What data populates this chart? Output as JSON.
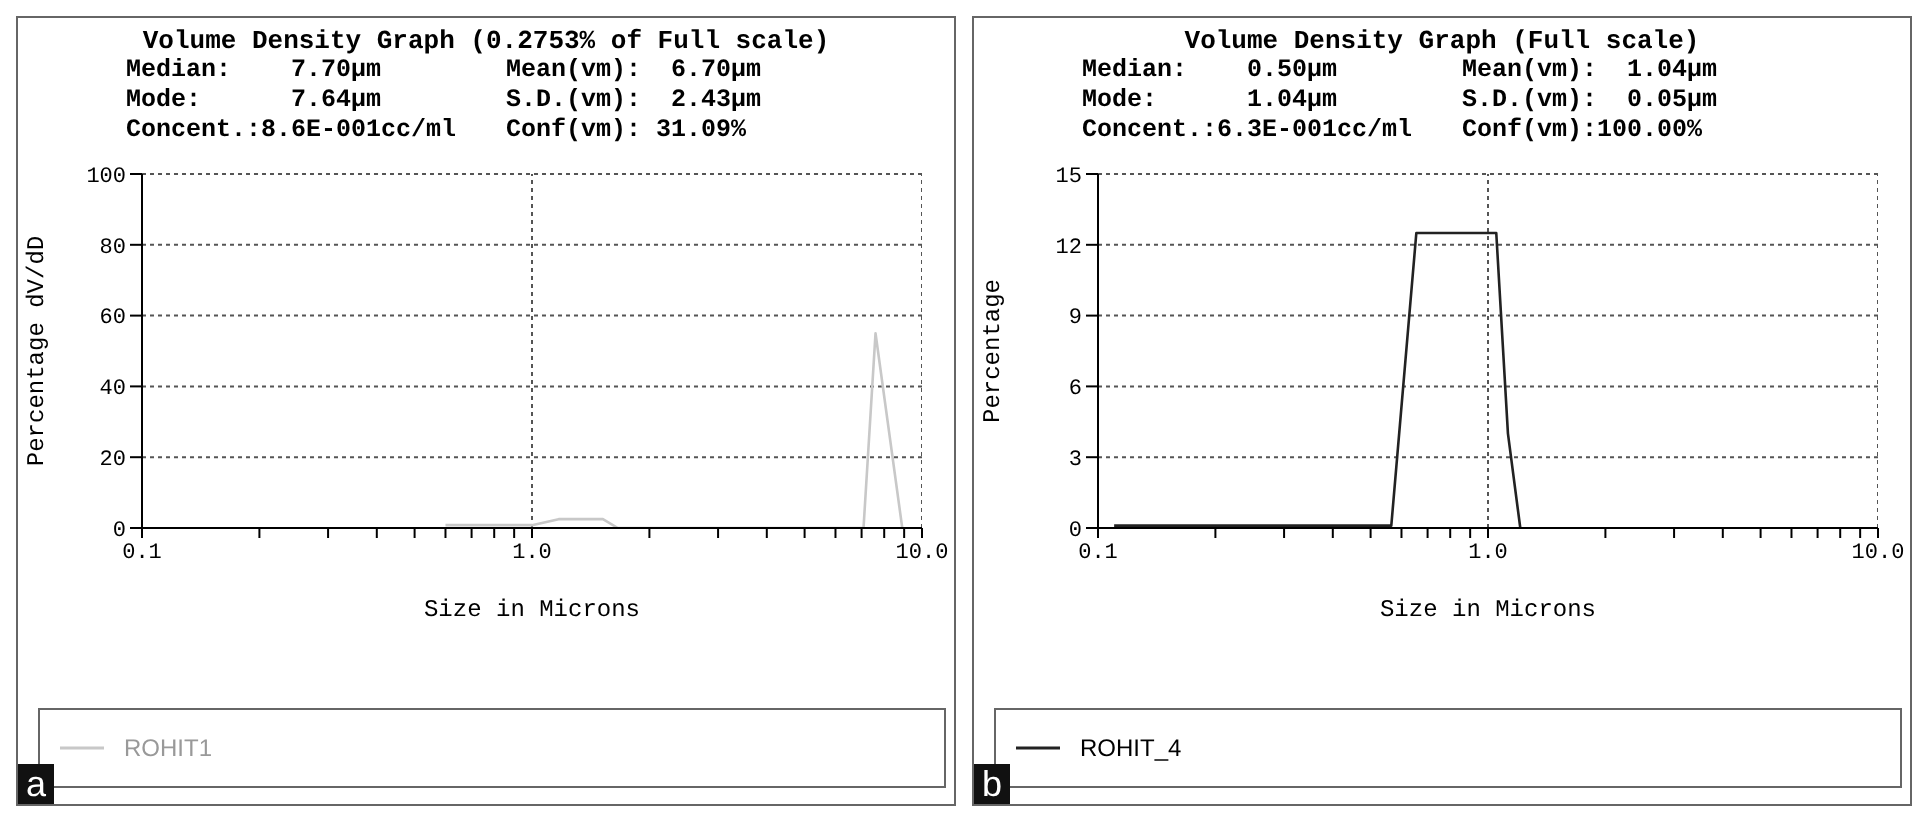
{
  "chart_data": [
    {
      "type": "line",
      "title": "Volume Density Graph (0.2753% of Full scale)",
      "annotations": [
        "Median:    7.70µm",
        "Mean(vm):  6.70µm",
        "Mode:      7.64µm",
        "S.D.(vm):  2.43µm",
        "Concent.:8.6E-001cc/ml",
        "Conf(vm): 31.09%",
        "a"
      ],
      "xlabel": "Size in Microns",
      "ylabel": "Percentage   dV/dD",
      "log": "x",
      "xlim": [
        0.1,
        10
      ],
      "xticks": [
        {
          "value": 0.1,
          "label": "0.1"
        },
        {
          "value": 0.2,
          "label": null
        },
        {
          "value": 0.3,
          "label": null
        },
        {
          "value": 0.4,
          "label": null
        },
        {
          "value": 0.5,
          "label": null
        },
        {
          "value": 0.6,
          "label": null
        },
        {
          "value": 0.7,
          "label": null
        },
        {
          "value": 0.8,
          "label": null
        },
        {
          "value": 0.9,
          "label": null
        },
        {
          "value": 1,
          "label": "1.0"
        },
        {
          "value": 2,
          "label": null
        },
        {
          "value": 3,
          "label": null
        },
        {
          "value": 4,
          "label": null
        },
        {
          "value": 5,
          "label": null
        },
        {
          "value": 6,
          "label": null
        },
        {
          "value": 7,
          "label": null
        },
        {
          "value": 8,
          "label": null
        },
        {
          "value": 9,
          "label": null
        },
        {
          "value": 10,
          "label": "10.0"
        }
      ],
      "ylim": [
        0,
        100
      ],
      "yticks": [
        0,
        20,
        40,
        60,
        80,
        100
      ],
      "grid": true,
      "legend": "bottom",
      "marker": "none",
      "line_style": "solid",
      "series": [
        {
          "name": "ROHIT1",
          "color": "#c8c8c8",
          "x": [
            0.6,
            1.0,
            1.17,
            1.52,
            1.66,
            7.08,
            7.6,
            8.9
          ],
          "values": [
            0.8,
            0.8,
            2.5,
            2.5,
            0,
            0,
            55,
            0
          ]
        }
      ]
    },
    {
      "type": "line",
      "title": "Volume Density Graph (Full scale)",
      "annotations": [
        "Median:    0.50µm",
        "Mean(vm):  1.04µm",
        "Mode:      1.04µm",
        "S.D.(vm):  0.05µm",
        "Concent.:6.3E-001cc/ml",
        "Conf(vm):100.00%",
        "b"
      ],
      "xlabel": "Size in Microns",
      "ylabel": "Percentage",
      "log": "x",
      "xlim": [
        0.1,
        10
      ],
      "xticks": [
        {
          "value": 0.1,
          "label": "0.1"
        },
        {
          "value": 0.2,
          "label": null
        },
        {
          "value": 0.3,
          "label": null
        },
        {
          "value": 0.4,
          "label": null
        },
        {
          "value": 0.5,
          "label": null
        },
        {
          "value": 0.6,
          "label": null
        },
        {
          "value": 0.7,
          "label": null
        },
        {
          "value": 0.8,
          "label": null
        },
        {
          "value": 0.9,
          "label": null
        },
        {
          "value": 1,
          "label": "1.0"
        },
        {
          "value": 2,
          "label": null
        },
        {
          "value": 3,
          "label": null
        },
        {
          "value": 4,
          "label": null
        },
        {
          "value": 5,
          "label": null
        },
        {
          "value": 6,
          "label": null
        },
        {
          "value": 7,
          "label": null
        },
        {
          "value": 8,
          "label": null
        },
        {
          "value": 9,
          "label": null
        },
        {
          "value": 10,
          "label": "10.0"
        }
      ],
      "ylim": [
        0,
        15
      ],
      "yticks": [
        0,
        3,
        6,
        9,
        12,
        15
      ],
      "grid": true,
      "legend": "bottom",
      "marker": "none",
      "line_style": "solid",
      "series": [
        {
          "name": "ROHIT_4",
          "color": "#222222",
          "x": [
            0.11,
            0.565,
            0.655,
            1.05,
            1.125,
            1.21
          ],
          "values": [
            0.1,
            0.1,
            12.5,
            12.5,
            4,
            0
          ]
        }
      ]
    }
  ]
}
